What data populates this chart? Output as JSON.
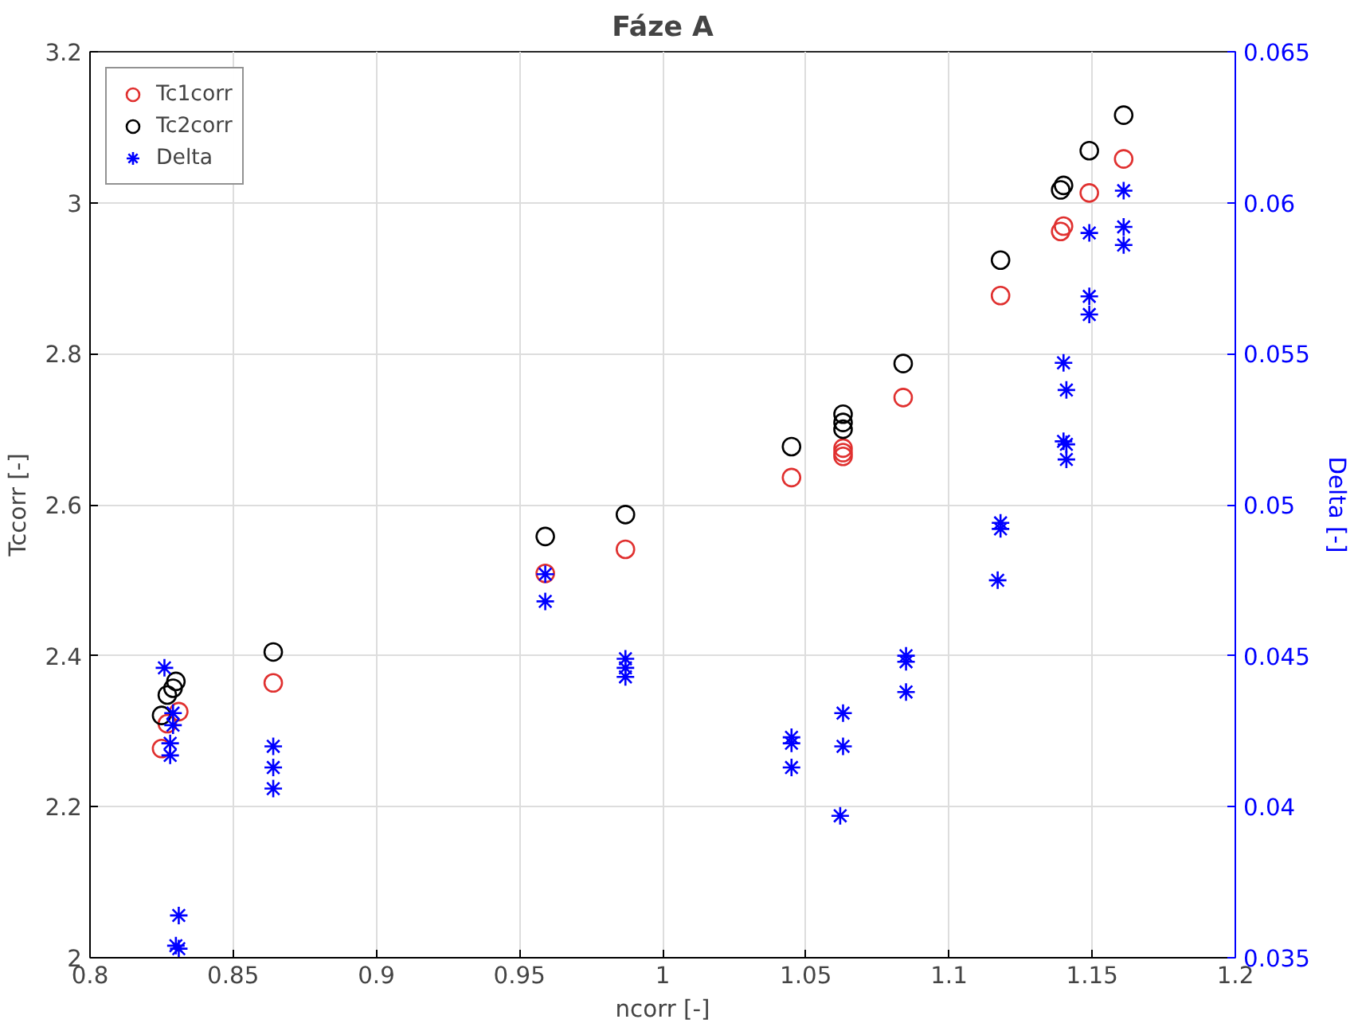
{
  "chart_data": {
    "type": "scatter",
    "title": "Fáze A",
    "xlabel": "ncorr [-]",
    "ylabel": "Tccorr [-]",
    "y2label": "Delta [-]",
    "xlim": [
      0.8,
      1.2
    ],
    "xticks": [
      0.8,
      0.85,
      0.9,
      0.95,
      1,
      1.05,
      1.1,
      1.15,
      1.2
    ],
    "ylim": [
      2,
      3.2
    ],
    "yticks": [
      2,
      2.2,
      2.4,
      2.6,
      2.8,
      3,
      3.2
    ],
    "y2lim": [
      0.035,
      0.065
    ],
    "y2ticks": [
      0.035,
      0.04,
      0.045,
      0.05,
      0.055,
      0.06,
      0.065
    ],
    "grid": true,
    "legend": "top left",
    "series": [
      {
        "name": "Tc1corr",
        "color": "#e0302f",
        "marker": "circle",
        "x": [
          0.831,
          0.827,
          0.825,
          0.864,
          0.959,
          0.987,
          1.045,
          1.063,
          1.063,
          1.063,
          1.084,
          1.118,
          1.14,
          1.139,
          1.149,
          1.161
        ],
        "values": [
          2.326,
          2.31,
          2.277,
          2.364,
          2.509,
          2.541,
          2.636,
          2.675,
          2.664,
          2.669,
          2.742,
          2.877,
          2.969,
          2.962,
          3.013,
          3.058
        ]
      },
      {
        "name": "Tc2corr",
        "color": "#000000",
        "marker": "circle",
        "x": [
          0.83,
          0.829,
          0.827,
          0.825,
          0.864,
          0.959,
          0.987,
          1.045,
          1.063,
          1.063,
          1.063,
          1.084,
          1.118,
          1.14,
          1.139,
          1.149,
          1.161
        ],
        "values": [
          2.366,
          2.357,
          2.348,
          2.321,
          2.405,
          2.558,
          2.587,
          2.677,
          2.72,
          2.709,
          2.7,
          2.787,
          2.924,
          3.023,
          3.017,
          3.069,
          3.116
        ]
      },
      {
        "name": "Delta",
        "color": "#0000ff",
        "marker": "cross",
        "axis": "y2",
        "x": [
          0.826,
          0.829,
          0.829,
          0.828,
          0.828,
          0.831,
          0.83,
          0.831,
          0.864,
          0.864,
          0.864,
          0.959,
          0.959,
          0.987,
          0.987,
          0.987,
          1.045,
          1.045,
          1.045,
          1.063,
          1.063,
          1.062,
          1.085,
          1.085,
          1.085,
          1.118,
          1.118,
          1.117,
          1.14,
          1.141,
          1.14,
          1.141,
          1.141,
          1.149,
          1.149,
          1.149,
          1.161,
          1.161,
          1.161
        ],
        "values": [
          0.0446,
          0.0431,
          0.0427,
          0.0421,
          0.0417,
          0.0364,
          0.0354,
          0.0353,
          0.042,
          0.0413,
          0.0406,
          0.0477,
          0.0468,
          0.0449,
          0.0446,
          0.0443,
          0.0423,
          0.0421,
          0.0413,
          0.0431,
          0.042,
          0.0397,
          0.045,
          0.0448,
          0.0438,
          0.0494,
          0.0492,
          0.0475,
          0.0547,
          0.0538,
          0.0521,
          0.052,
          0.0515,
          0.059,
          0.0569,
          0.0563,
          0.0604,
          0.0592,
          0.0586
        ]
      }
    ]
  }
}
